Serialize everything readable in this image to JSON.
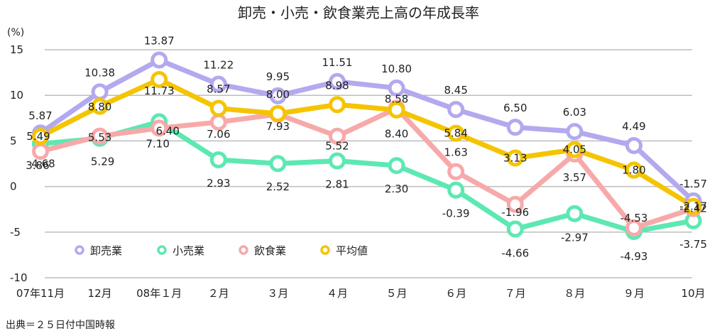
{
  "chart_data": {
    "type": "line",
    "title": "卸売・小売・飲食業売上高の年成長率",
    "ylabel": "(%)",
    "xlabel": "",
    "ylim": [
      -10,
      15
    ],
    "yticks": [
      "-10",
      "-5",
      "0",
      "5",
      "10",
      "15"
    ],
    "grid": true,
    "legend_position": "bottom-left",
    "categories": [
      "07年11月",
      "12月",
      "08年１月",
      "２月",
      "３月",
      "４月",
      "５月",
      "６月",
      "７月",
      "８月",
      "９月",
      "10月"
    ],
    "series": [
      {
        "name": "卸売業",
        "color": "#b3a9ee",
        "values": [
          5.87,
          10.38,
          13.87,
          11.22,
          9.95,
          11.51,
          10.8,
          8.45,
          6.5,
          6.03,
          4.49,
          -1.57
        ],
        "labels": [
          "5.87",
          "10.38",
          "13.87",
          "11.22",
          "9.95",
          "11.51",
          "10.80",
          "8.45",
          "6.50",
          "6.03",
          "4.49",
          "-1.57"
        ]
      },
      {
        "name": "小売業",
        "color": "#5de8b2",
        "values": [
          4.68,
          5.29,
          7.1,
          2.93,
          2.52,
          2.81,
          2.3,
          -0.39,
          -4.66,
          -2.97,
          -4.93,
          -3.75
        ],
        "labels": [
          "4.68",
          "5.29",
          "7.10",
          "2.93",
          "2.52",
          "2.81",
          "2.30",
          "-0.39",
          "-4.66",
          "-2.97",
          "-4.93",
          "-3.75"
        ]
      },
      {
        "name": "飲食業",
        "color": "#f7a9aa",
        "values": [
          3.86,
          5.53,
          6.4,
          7.06,
          7.93,
          5.52,
          8.58,
          1.63,
          -1.96,
          3.57,
          -4.53,
          -2.42
        ],
        "labels": [
          "3.86",
          "5.53",
          "6.40",
          "7.06",
          "7.93",
          "5.52",
          "8.58",
          "1.63",
          "-1.96",
          "3.57",
          "-4.53",
          "-2.42"
        ]
      },
      {
        "name": "平均値",
        "color": "#f5c400",
        "values": [
          5.49,
          8.8,
          11.73,
          8.57,
          8.0,
          8.98,
          8.4,
          5.84,
          3.13,
          4.05,
          1.8,
          -2.17
        ],
        "labels": [
          "5.49",
          "8.80",
          "11.73",
          "8.57",
          "8.00",
          "8.98",
          "8.40",
          "5.84",
          "3.13",
          "4.05",
          "1.80",
          "-2.17"
        ]
      }
    ],
    "source": "出典＝２５日付中国時報"
  }
}
